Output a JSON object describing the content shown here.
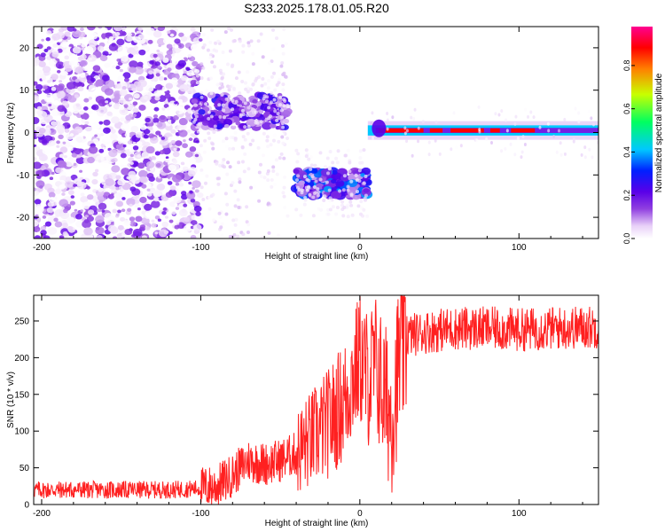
{
  "title": "S233.2025.178.01.05.R20",
  "chart_data": [
    {
      "type": "heatmap",
      "title": "S233.2025.178.01.05.R20",
      "xlabel": "Height of straight line (km)",
      "ylabel": "Frequency (Hz)",
      "xlim": [
        -205,
        150
      ],
      "ylim": [
        -25,
        25
      ],
      "x_ticks": [
        -200,
        -100,
        0,
        100
      ],
      "y_ticks": [
        -20,
        -10,
        0,
        10,
        20
      ],
      "colorbar": {
        "label": "Normalized spectral amplitude",
        "range": [
          0,
          0.98
        ],
        "ticks": [
          0.0,
          0.2,
          0.4,
          0.6,
          0.8
        ],
        "colormap": [
          "#ffffff",
          "#e8d0f8",
          "#9040e0",
          "#5a00e8",
          "#0020ff",
          "#00c8ff",
          "#00ff60",
          "#c8ff00",
          "#ff8000",
          "#ff0000",
          "#ff0090"
        ]
      },
      "features": [
        {
          "name": "scattered noise",
          "x_range": [
            -205,
            -100
          ],
          "freq_range": [
            -25,
            25
          ],
          "amplitude": 0.2
        },
        {
          "name": "band",
          "x_range": [
            -105,
            -45
          ],
          "freq_center": 5,
          "freq_halfwidth": 4,
          "amplitude": 0.3
        },
        {
          "name": "band",
          "x_range": [
            -40,
            5
          ],
          "freq_center": -12,
          "freq_halfwidth": 3,
          "amplitude": 0.4
        },
        {
          "name": "carrier",
          "x_range": [
            5,
            150
          ],
          "freq_center": 0.5,
          "freq_halfwidth": 1,
          "amplitude": 0.95
        }
      ]
    },
    {
      "type": "line",
      "xlabel": "Height of straight line (km)",
      "ylabel": "SNR (10 * v/v)",
      "xlim": [
        -205,
        150
      ],
      "ylim": [
        0,
        285
      ],
      "x_ticks": [
        -200,
        -100,
        0,
        100
      ],
      "y_ticks": [
        0,
        50,
        100,
        150,
        200,
        250
      ],
      "series": [
        {
          "color": "#ff2020",
          "x": [
            -205,
            -180,
            -160,
            -140,
            -120,
            -100,
            -90,
            -80,
            -70,
            -60,
            -50,
            -40,
            -30,
            -20,
            -10,
            0,
            5,
            10,
            15,
            20,
            25,
            30,
            40,
            60,
            80,
            100,
            120,
            150
          ],
          "values": [
            20,
            20,
            20,
            20,
            20,
            22,
            25,
            40,
            60,
            55,
            60,
            70,
            90,
            110,
            140,
            200,
            170,
            190,
            150,
            120,
            200,
            230,
            235,
            240,
            240,
            238,
            240,
            242
          ]
        }
      ]
    }
  ]
}
